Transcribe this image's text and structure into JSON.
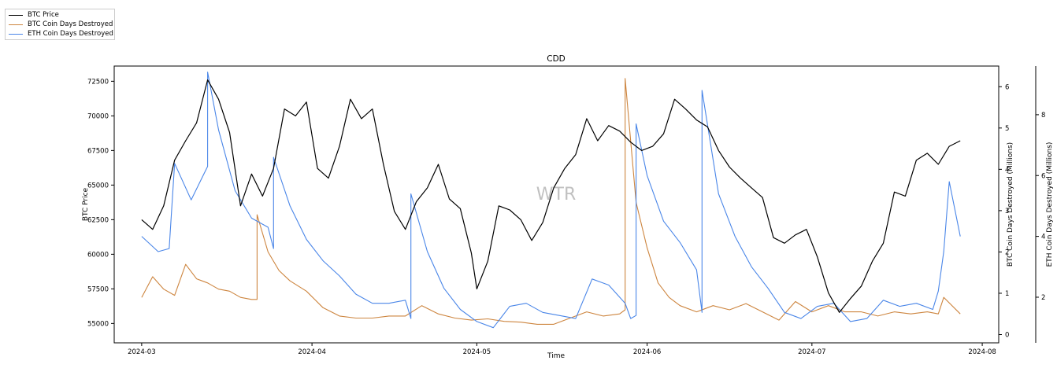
{
  "chart_data": {
    "type": "line",
    "title": "CDD",
    "watermark": "WTR",
    "xlabel": "Time",
    "x_ticks": [
      "2024-03",
      "2024-04",
      "2024-05",
      "2024-06",
      "2024-07",
      "2024-08"
    ],
    "axes": {
      "left": {
        "label": "BTC Price",
        "ylim": [
          53600,
          73600
        ],
        "ticks": [
          "55000",
          "57500",
          "60000",
          "62500",
          "65000",
          "67500",
          "70000",
          "72500"
        ]
      },
      "right1": {
        "label": "BTC Coin Days Destroyed (Millions)",
        "ylim": [
          -0.2,
          6.5
        ],
        "ticks": [
          "0",
          "1",
          "2",
          "3",
          "4",
          "5",
          "6"
        ]
      },
      "right2": {
        "label": "ETH Coin Days Destroyed (Millions)",
        "ylim": [
          0.5,
          9.6
        ],
        "ticks": [
          "2",
          "4",
          "6",
          "8"
        ]
      }
    },
    "legend_position": "top-left (outside plot)",
    "series": [
      {
        "name": "BTC Price",
        "axis": "left",
        "color": "#000000",
        "x": [
          "2024-03-01",
          "2024-03-03",
          "2024-03-05",
          "2024-03-07",
          "2024-03-09",
          "2024-03-11",
          "2024-03-13",
          "2024-03-15",
          "2024-03-17",
          "2024-03-19",
          "2024-03-21",
          "2024-03-23",
          "2024-03-25",
          "2024-03-27",
          "2024-03-29",
          "2024-03-31",
          "2024-04-02",
          "2024-04-04",
          "2024-04-06",
          "2024-04-08",
          "2024-04-10",
          "2024-04-12",
          "2024-04-14",
          "2024-04-16",
          "2024-04-18",
          "2024-04-20",
          "2024-04-22",
          "2024-04-24",
          "2024-04-26",
          "2024-04-28",
          "2024-04-30",
          "2024-05-01",
          "2024-05-03",
          "2024-05-05",
          "2024-05-07",
          "2024-05-09",
          "2024-05-11",
          "2024-05-13",
          "2024-05-15",
          "2024-05-17",
          "2024-05-19",
          "2024-05-21",
          "2024-05-23",
          "2024-05-25",
          "2024-05-27",
          "2024-05-29",
          "2024-05-31",
          "2024-06-02",
          "2024-06-04",
          "2024-06-06",
          "2024-06-08",
          "2024-06-10",
          "2024-06-12",
          "2024-06-14",
          "2024-06-16",
          "2024-06-18",
          "2024-06-20",
          "2024-06-22",
          "2024-06-24",
          "2024-06-26",
          "2024-06-28",
          "2024-06-30",
          "2024-07-02",
          "2024-07-04",
          "2024-07-06",
          "2024-07-08",
          "2024-07-10",
          "2024-07-12",
          "2024-07-14",
          "2024-07-16",
          "2024-07-18",
          "2024-07-20",
          "2024-07-22",
          "2024-07-24",
          "2024-07-26",
          "2024-07-28"
        ],
        "values": [
          62500,
          61800,
          63500,
          66800,
          68200,
          69500,
          72600,
          71200,
          68800,
          63500,
          65800,
          64200,
          66200,
          70500,
          70000,
          71000,
          66200,
          65500,
          67800,
          71200,
          69800,
          70500,
          66500,
          63100,
          61800,
          63800,
          64800,
          66500,
          64000,
          63300,
          60100,
          57500,
          59500,
          63500,
          63200,
          62500,
          61000,
          62300,
          64800,
          66200,
          67200,
          69800,
          68200,
          69300,
          68900,
          68100,
          67500,
          67800,
          68700,
          71200,
          70500,
          69700,
          69200,
          67500,
          66300,
          65500,
          64800,
          64100,
          61200,
          60800,
          61400,
          61800,
          59800,
          57200,
          55800,
          56800,
          57700,
          59500,
          60800,
          64500,
          64200,
          66800,
          67300,
          66500,
          67800,
          68200
        ]
      },
      {
        "name": "BTC Coin Days Destroyed",
        "axis": "right1",
        "color": "#cd853f",
        "x": [
          "2024-03-01",
          "2024-03-03",
          "2024-03-05",
          "2024-03-07",
          "2024-03-09",
          "2024-03-11",
          "2024-03-13",
          "2024-03-15",
          "2024-03-17",
          "2024-03-19",
          "2024-03-21",
          "2024-03-22",
          "2024-03-22",
          "2024-03-24",
          "2024-03-26",
          "2024-03-28",
          "2024-03-31",
          "2024-04-03",
          "2024-04-06",
          "2024-04-09",
          "2024-04-12",
          "2024-04-15",
          "2024-04-18",
          "2024-04-21",
          "2024-04-24",
          "2024-04-27",
          "2024-04-30",
          "2024-05-03",
          "2024-05-06",
          "2024-05-09",
          "2024-05-12",
          "2024-05-15",
          "2024-05-18",
          "2024-05-21",
          "2024-05-24",
          "2024-05-27",
          "2024-05-28",
          "2024-05-28",
          "2024-05-30",
          "2024-06-01",
          "2024-06-03",
          "2024-06-05",
          "2024-06-07",
          "2024-06-10",
          "2024-06-13",
          "2024-06-16",
          "2024-06-19",
          "2024-06-22",
          "2024-06-25",
          "2024-06-28",
          "2024-07-01",
          "2024-07-04",
          "2024-07-07",
          "2024-07-10",
          "2024-07-13",
          "2024-07-16",
          "2024-07-19",
          "2024-07-22",
          "2024-07-24",
          "2024-07-25",
          "2024-07-28"
        ],
        "values": [
          0.9,
          1.4,
          1.1,
          0.95,
          1.7,
          1.35,
          1.25,
          1.1,
          1.05,
          0.9,
          0.85,
          0.85,
          2.9,
          2.0,
          1.55,
          1.3,
          1.05,
          0.65,
          0.45,
          0.4,
          0.4,
          0.45,
          0.45,
          0.7,
          0.5,
          0.4,
          0.35,
          0.38,
          0.32,
          0.3,
          0.25,
          0.25,
          0.4,
          0.55,
          0.45,
          0.5,
          0.6,
          6.2,
          3.2,
          2.1,
          1.25,
          0.9,
          0.7,
          0.55,
          0.7,
          0.6,
          0.75,
          0.55,
          0.35,
          0.8,
          0.55,
          0.7,
          0.55,
          0.55,
          0.45,
          0.55,
          0.5,
          0.55,
          0.5,
          0.9,
          0.5
        ]
      },
      {
        "name": "ETH Coin Days Destroyed",
        "axis": "right2",
        "color": "#4a86e8",
        "x": [
          "2024-03-01",
          "2024-03-04",
          "2024-03-06",
          "2024-03-07",
          "2024-03-10",
          "2024-03-13",
          "2024-03-13",
          "2024-03-15",
          "2024-03-18",
          "2024-03-21",
          "2024-03-24",
          "2024-03-25",
          "2024-03-25",
          "2024-03-28",
          "2024-03-31",
          "2024-04-03",
          "2024-04-06",
          "2024-04-09",
          "2024-04-12",
          "2024-04-15",
          "2024-04-18",
          "2024-04-19",
          "2024-04-19",
          "2024-04-22",
          "2024-04-25",
          "2024-04-28",
          "2024-05-01",
          "2024-05-04",
          "2024-05-07",
          "2024-05-10",
          "2024-05-13",
          "2024-05-16",
          "2024-05-19",
          "2024-05-22",
          "2024-05-25",
          "2024-05-28",
          "2024-05-29",
          "2024-05-30",
          "2024-05-30",
          "2024-06-01",
          "2024-06-04",
          "2024-06-07",
          "2024-06-10",
          "2024-06-11",
          "2024-06-11",
          "2024-06-14",
          "2024-06-17",
          "2024-06-20",
          "2024-06-23",
          "2024-06-26",
          "2024-06-29",
          "2024-07-02",
          "2024-07-05",
          "2024-07-08",
          "2024-07-11",
          "2024-07-14",
          "2024-07-17",
          "2024-07-20",
          "2024-07-23",
          "2024-07-24",
          "2024-07-25",
          "2024-07-26",
          "2024-07-28"
        ],
        "values": [
          4.0,
          3.5,
          3.6,
          6.4,
          5.2,
          6.3,
          9.4,
          7.5,
          5.5,
          4.6,
          4.3,
          3.6,
          6.6,
          5.0,
          3.9,
          3.2,
          2.7,
          2.1,
          1.8,
          1.8,
          1.9,
          1.3,
          5.4,
          3.5,
          2.3,
          1.6,
          1.2,
          1.0,
          1.7,
          1.8,
          1.5,
          1.4,
          1.3,
          2.6,
          2.4,
          1.8,
          1.3,
          1.4,
          7.7,
          6.0,
          4.5,
          3.8,
          2.9,
          1.5,
          8.8,
          5.4,
          4.0,
          3.0,
          2.3,
          1.5,
          1.3,
          1.7,
          1.8,
          1.2,
          1.3,
          1.9,
          1.7,
          1.8,
          1.6,
          2.2,
          3.5,
          5.8,
          4.0
        ]
      }
    ]
  }
}
